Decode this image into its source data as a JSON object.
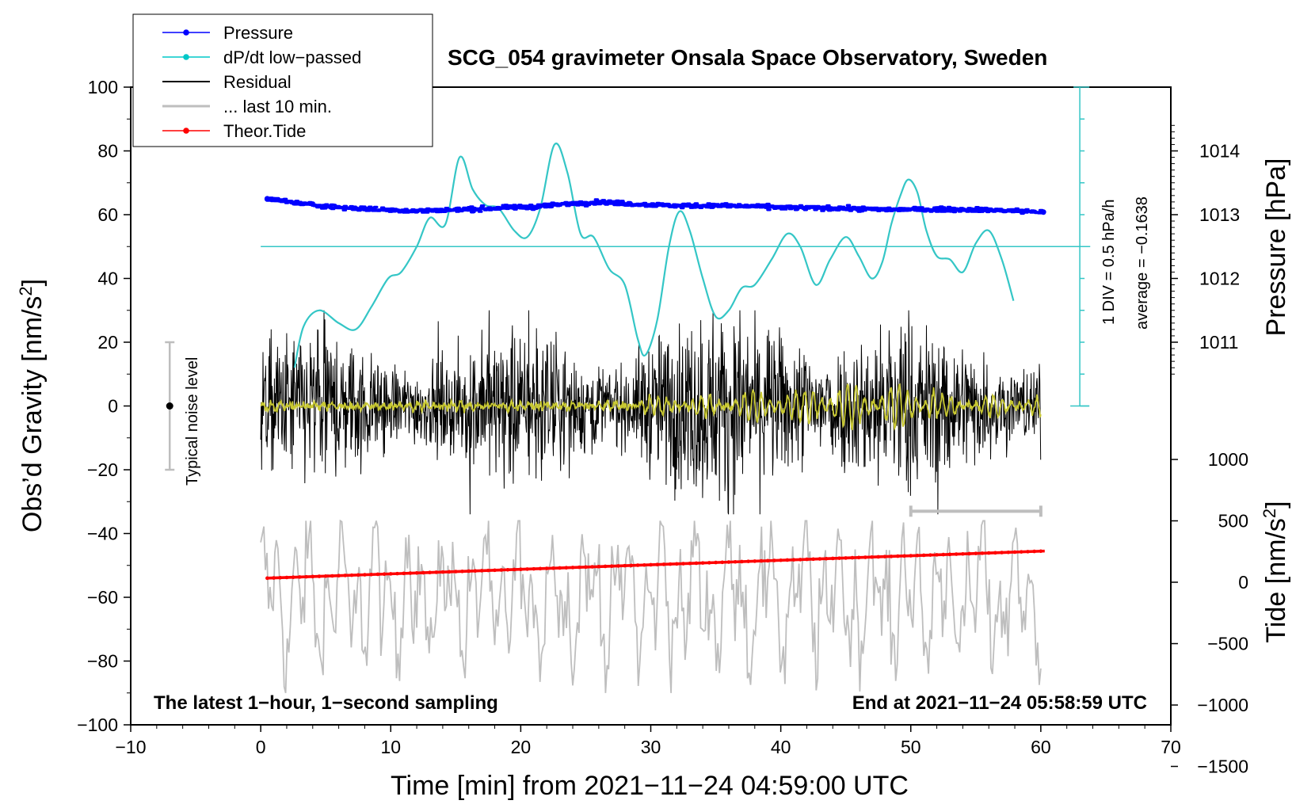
{
  "chart_data": {
    "type": "line",
    "title": "SCG_054 gravimeter Onsala Space Observatory, Sweden",
    "xlabel": "Time [min] from 2021−11−24 04:59:00 UTC",
    "ylabel_left": "Obs’d Gravity [nm/s",
    "ylabel_left_sup": "2",
    "ylabel_left_close": "]",
    "ylabel_right_pressure": "Pressure [hPa]",
    "ylabel_right_tide": "Tide [nm/s",
    "ylabel_right_tide_sup": "2",
    "ylabel_right_tide_close": "]",
    "xlim": [
      -10,
      70
    ],
    "ylim": [
      -100,
      100
    ],
    "x_ticks": [
      "−10",
      "0",
      "10",
      "20",
      "30",
      "40",
      "50",
      "60",
      "70"
    ],
    "y_ticks": [
      "−100",
      "−80",
      "−60",
      "−40",
      "−20",
      "0",
      "20",
      "40",
      "60",
      "80",
      "100"
    ],
    "pressure_ticks": [
      "1011",
      "1012",
      "1013",
      "1014"
    ],
    "tide_ticks": [
      "−1500",
      "−1000",
      "−500",
      "0",
      "500",
      "1000"
    ],
    "note_left": "The latest 1−hour, 1−second sampling",
    "note_right": "End at 2021−11−24 05:58:59 UTC",
    "noise_label": "Typical noise level",
    "div_label": "1 DIV = 0.5 hPa/h",
    "average_label": "average = −0.1638",
    "legend": [
      {
        "label": "Pressure",
        "color": "#0000ff",
        "marker": true
      },
      {
        "label": "dP/dt low−passed",
        "color": "#00c8c8",
        "marker": true
      },
      {
        "label": "Residual",
        "color": "#000000",
        "marker": false
      },
      {
        "label": "... last 10 min.",
        "color": "#bebebe",
        "marker": false
      },
      {
        "label": "Theor.Tide",
        "color": "#ff0000",
        "marker": true
      }
    ],
    "colors": {
      "pressure": "#0000ff",
      "dpdt": "#34c6c6",
      "residual": "#000000",
      "last10": "#bebebe",
      "tide": "#ff0000",
      "smoothed": "#c8c832",
      "noise": "#bebebe"
    },
    "series": {
      "pressure": {
        "name": "Pressure",
        "x": [
          0.5,
          3,
          6,
          9,
          12,
          15,
          18,
          21,
          24,
          26,
          29,
          32,
          35,
          38,
          41,
          44,
          47,
          50,
          53,
          56,
          58,
          60.2
        ],
        "y_gravity_units": [
          65,
          63.5,
          62.3,
          61.6,
          61.2,
          61.5,
          62,
          62.5,
          63.5,
          64,
          63.3,
          62.8,
          62.8,
          62.6,
          62.2,
          62,
          61.7,
          61.6,
          61.7,
          61.5,
          61.2,
          60.8
        ]
      },
      "dpdt": {
        "name": "dP/dt low−passed",
        "x": [
          2.6,
          3.3,
          4.5,
          6,
          7.3,
          8.5,
          9.8,
          10.8,
          12,
          13,
          14.2,
          15.3,
          16.3,
          17.3,
          18.3,
          19.5,
          20.5,
          21.5,
          22.6,
          23.6,
          24.6,
          25.6,
          26.8,
          28,
          29,
          29.6,
          30.5,
          31.4,
          32.2,
          33,
          34,
          35,
          36,
          37,
          38,
          39.3,
          40.5,
          41.5,
          42.7,
          43.8,
          45,
          46,
          47,
          47.8,
          48.5,
          49.2,
          49.8,
          50.5,
          51.2,
          52,
          53,
          54,
          55,
          56,
          57,
          57.9
        ],
        "y": [
          12,
          25,
          30,
          26,
          24,
          31,
          40,
          42,
          50,
          59,
          57,
          78,
          68,
          63,
          62,
          55,
          53,
          62,
          82,
          73,
          54,
          53,
          43,
          38,
          21,
          16,
          27,
          50,
          61,
          55,
          40,
          28,
          30,
          37,
          38,
          46,
          54,
          50,
          38,
          46,
          53,
          47,
          40,
          45,
          57,
          66,
          71,
          67,
          55,
          47,
          46,
          42,
          51,
          55,
          46,
          33
        ]
      },
      "tide": {
        "name": "Theor.Tide",
        "x": [
          0.5,
          60.3
        ],
        "y_gravity_units": [
          -54,
          -45.5
        ]
      }
    },
    "reference_line_y": 50,
    "noise_bar": {
      "x": -7,
      "y": [
        -20,
        20
      ],
      "center": 0
    },
    "last10_bar": {
      "x": [
        50,
        60
      ],
      "y": -33
    }
  }
}
